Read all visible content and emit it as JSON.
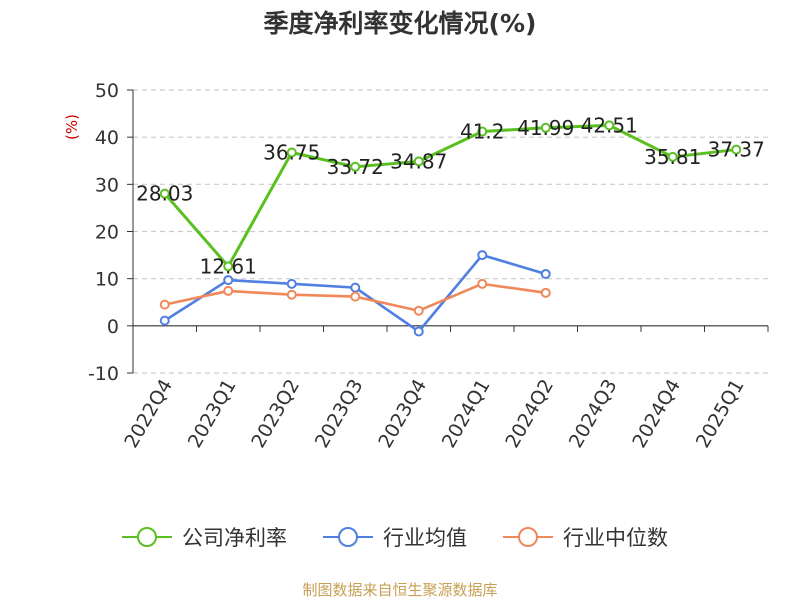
{
  "title": "季度净利率变化情况(%)",
  "footer": "制图数据来自恒生聚源数据库",
  "chart_data": {
    "type": "line",
    "title": "季度净利率变化情况(%)",
    "ylabel": "(%)",
    "xlabel": "",
    "ylim": [
      -10,
      50
    ],
    "yticks": [
      -10,
      0,
      10,
      20,
      30,
      40,
      50
    ],
    "grid": true,
    "legend_position": "bottom",
    "categories": [
      "2022Q4",
      "2023Q1",
      "2023Q2",
      "2023Q3",
      "2023Q4",
      "2024Q1",
      "2024Q2",
      "2024Q3",
      "2024Q4",
      "2025Q1"
    ],
    "series": [
      {
        "name": "公司净利率",
        "color": "#5ac021",
        "values": [
          28.03,
          12.61,
          36.75,
          33.72,
          34.87,
          41.2,
          41.99,
          42.51,
          35.81,
          37.37
        ],
        "labels": [
          "28.03",
          "12.61",
          "36.75",
          "33.72",
          "34.87",
          "41.2",
          "41.99",
          "42.51",
          "35.81",
          "37.37"
        ]
      },
      {
        "name": "行业均值",
        "color": "#4f7fe0",
        "values": [
          1.1,
          9.7,
          8.9,
          8.1,
          -1.2,
          15.0,
          11.0,
          null,
          null,
          null
        ]
      },
      {
        "name": "行业中位数",
        "color": "#f0885a",
        "values": [
          4.5,
          7.4,
          6.6,
          6.2,
          3.2,
          8.9,
          7.0,
          null,
          null,
          null
        ]
      }
    ]
  }
}
